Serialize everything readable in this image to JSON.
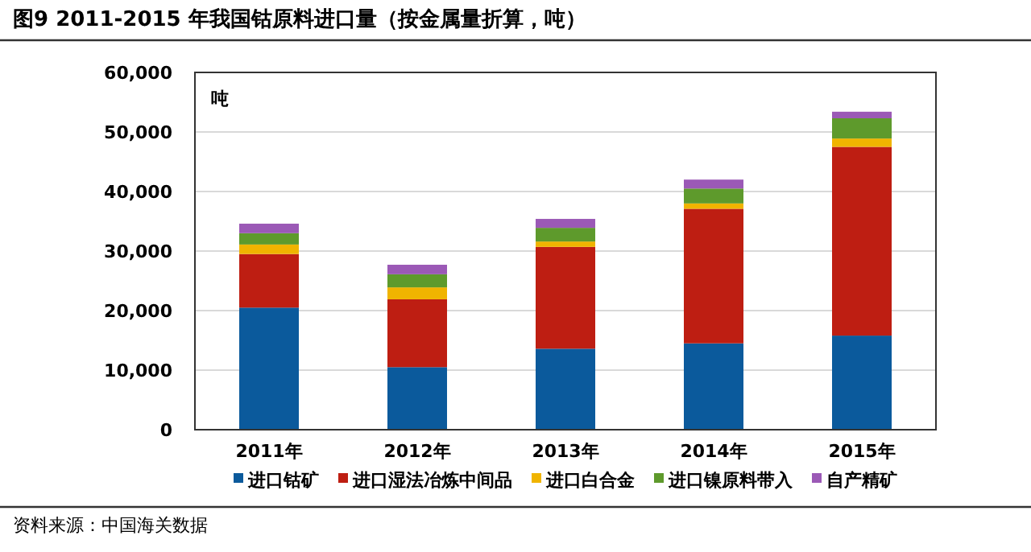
{
  "chart_data": {
    "type": "bar",
    "stacked": true,
    "title": "图9  2011-2015 年我国钴原料进口量（按金属量折算，吨）",
    "ylabel": "吨",
    "categories": [
      "2011年",
      "2012年",
      "2013年",
      "2014年",
      "2015年"
    ],
    "series": [
      {
        "name": "进口钴矿",
        "color": "#0b5a9c",
        "values": [
          20500,
          10500,
          13600,
          14500,
          15800
        ]
      },
      {
        "name": "进口湿法冶炼中间品",
        "color": "#be1e12",
        "values": [
          9000,
          11400,
          17100,
          22600,
          31700
        ]
      },
      {
        "name": "进口白合金",
        "color": "#f0b400",
        "values": [
          1600,
          2000,
          900,
          900,
          1400
        ]
      },
      {
        "name": "进口镍原料带入",
        "color": "#5e9a2c",
        "values": [
          1900,
          2200,
          2300,
          2500,
          3400
        ]
      },
      {
        "name": "自产精矿",
        "color": "#9b59b6",
        "values": [
          1600,
          1600,
          1500,
          1500,
          1100
        ]
      }
    ],
    "ylim": [
      0,
      60000
    ],
    "yticks": [
      0,
      {
        "value": 10000,
        "label": "10,000"
      },
      {
        "value": 20000,
        "label": "20,000"
      },
      {
        "value": 30000,
        "label": "30,000"
      },
      {
        "value": 40000,
        "label": "40,000"
      },
      {
        "value": 50000,
        "label": "50,000"
      },
      {
        "value": 60000,
        "label": "60,000"
      }
    ],
    "grid": "y",
    "legend": "bottom",
    "annotations": [
      "资料来源：中国海关数据"
    ]
  }
}
